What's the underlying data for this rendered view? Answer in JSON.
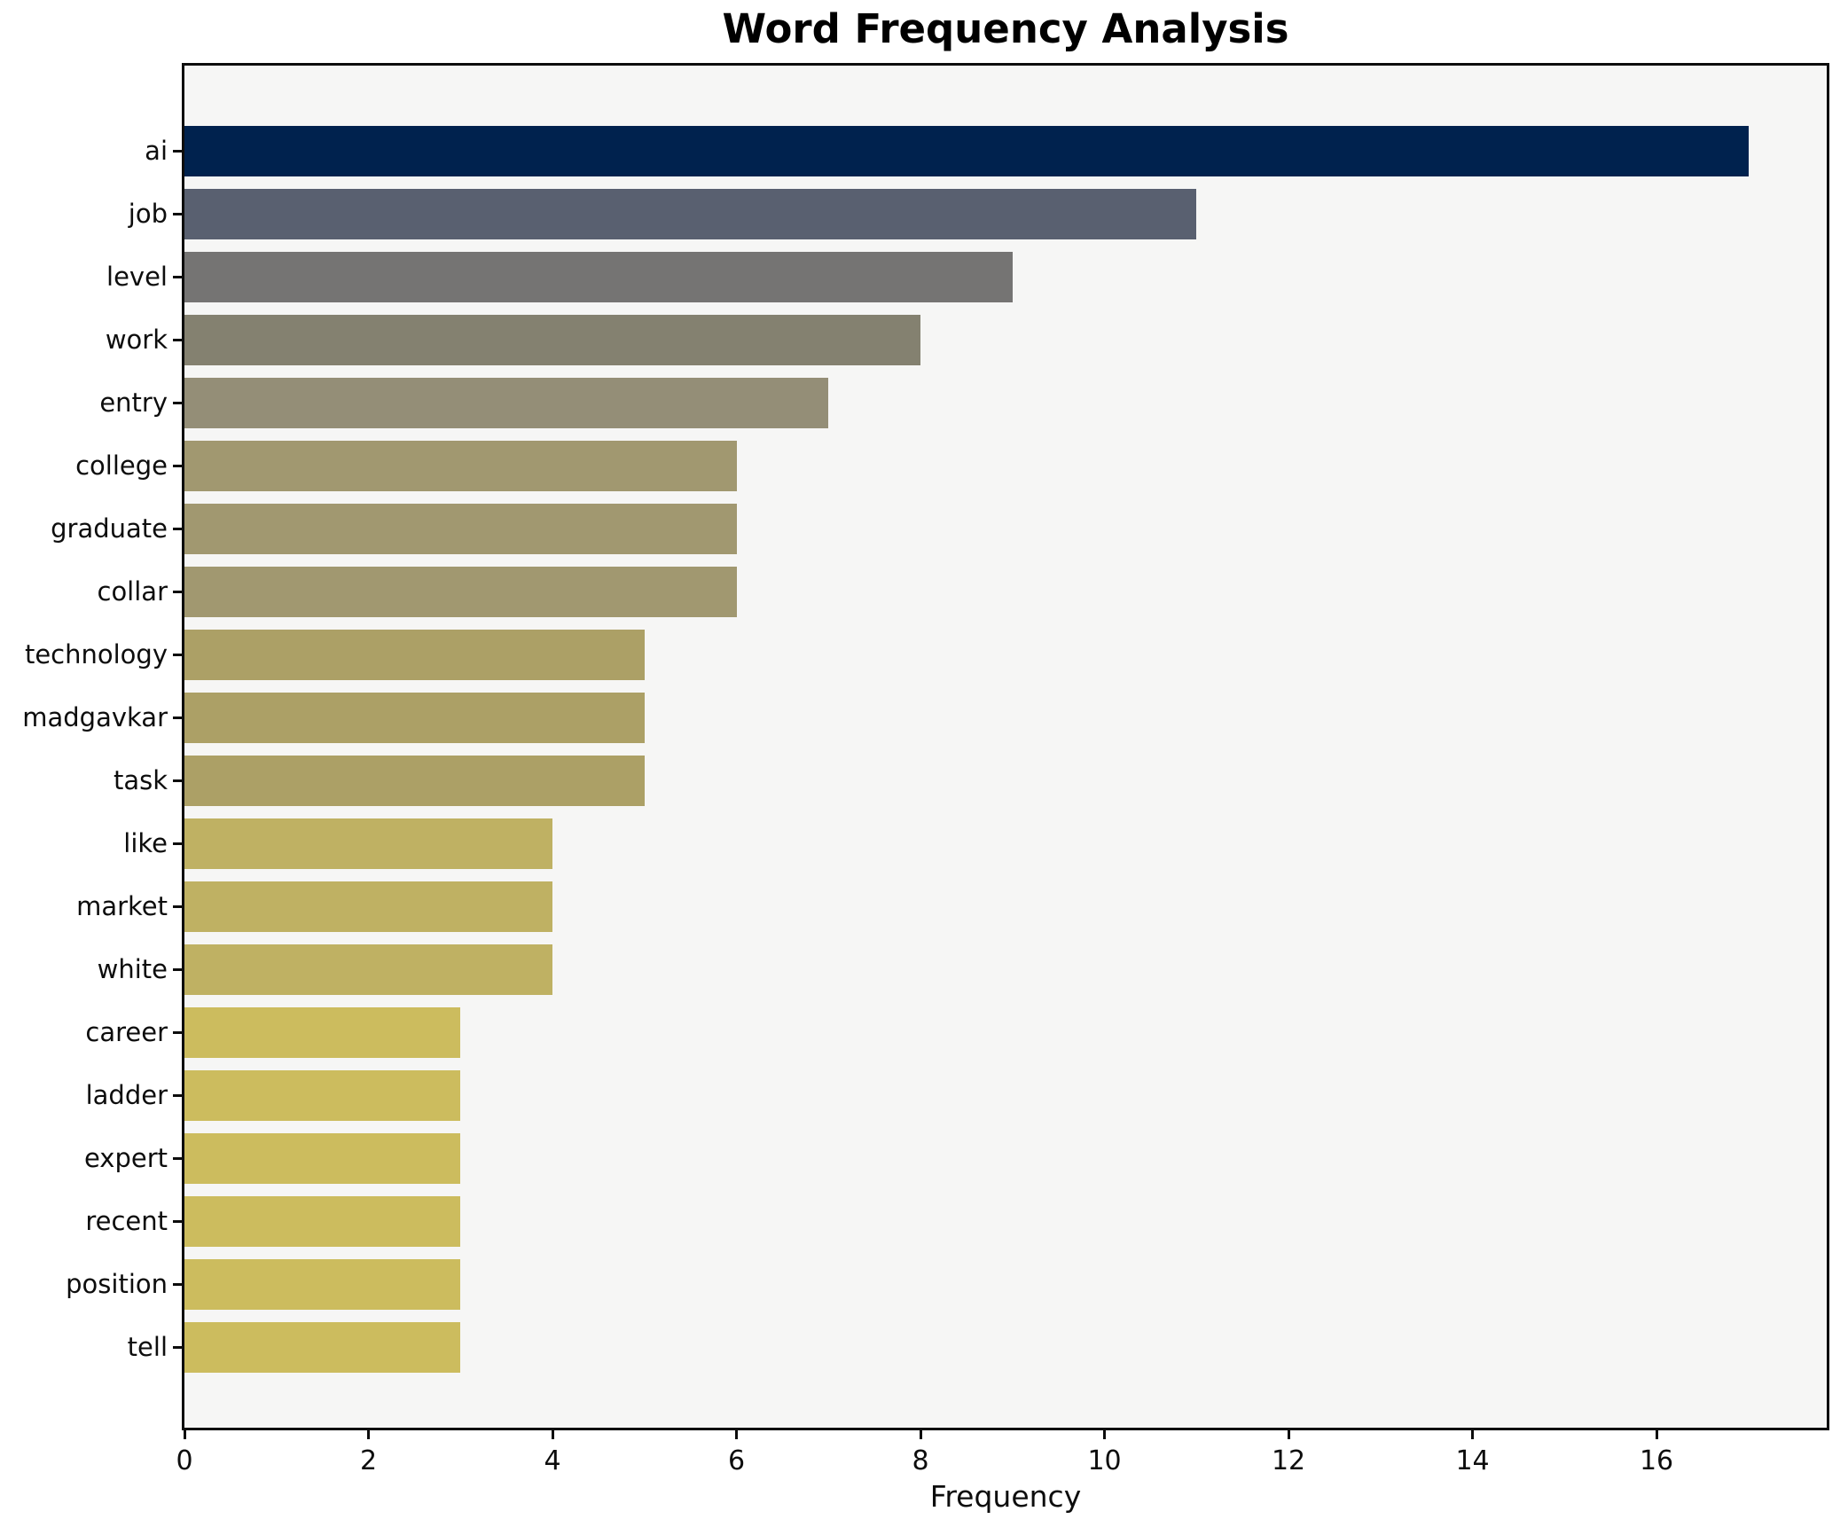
{
  "chart_data": {
    "type": "bar",
    "orientation": "horizontal",
    "title": "Word Frequency Analysis",
    "xlabel": "Frequency",
    "ylabel": "",
    "categories": [
      "ai",
      "job",
      "level",
      "work",
      "entry",
      "college",
      "graduate",
      "collar",
      "technology",
      "madgavkar",
      "task",
      "like",
      "market",
      "white",
      "career",
      "ladder",
      "expert",
      "recent",
      "position",
      "tell"
    ],
    "values": [
      17,
      11,
      9,
      8,
      7,
      6,
      6,
      6,
      5,
      5,
      5,
      4,
      4,
      4,
      3,
      3,
      3,
      3,
      3,
      3
    ],
    "bar_colors": [
      "#00224e",
      "#596070",
      "#757473",
      "#848170",
      "#948e77",
      "#a19870",
      "#a19870",
      "#a19870",
      "#aca066",
      "#aca066",
      "#aca066",
      "#bfb163",
      "#bfb163",
      "#bfb163",
      "#ccbc5e",
      "#ccbc5e",
      "#ccbc5e",
      "#ccbc5e",
      "#ccbc5e",
      "#ccbc5e"
    ],
    "xlim": [
      0,
      17.85
    ],
    "x_ticks": [
      0,
      2,
      4,
      6,
      8,
      10,
      12,
      14,
      16
    ],
    "grid": false,
    "legend": null,
    "plot_background": "#f6f6f5",
    "figure_background": "#ffffff",
    "spine_color": "#0d0d0d",
    "text_color": "#0d0d0d"
  }
}
